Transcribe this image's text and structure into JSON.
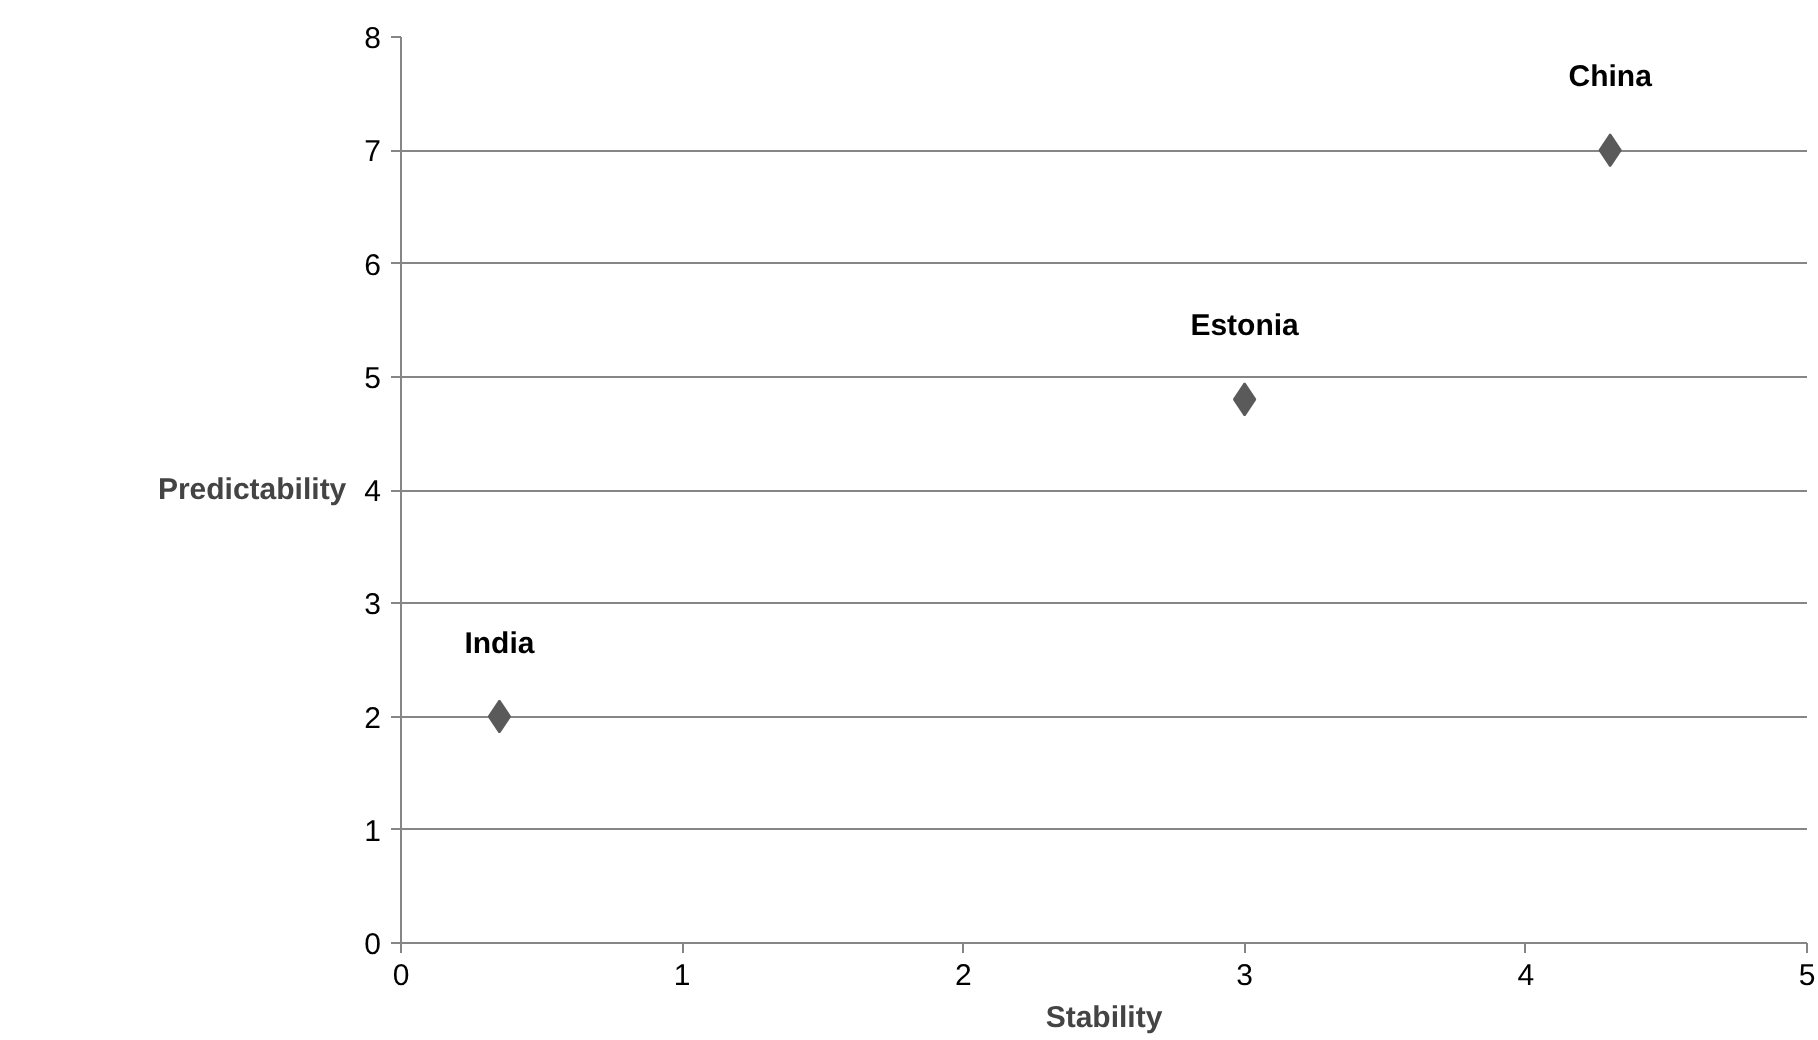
{
  "chart_data": {
    "type": "scatter",
    "xlabel": "Stability",
    "ylabel": "Predictability",
    "x": [
      0.35,
      3,
      4.3
    ],
    "series": [
      {
        "color": "#5a5a5a",
        "values": [
          2,
          4.8,
          7
        ]
      }
    ],
    "annotations": [
      {
        "text": "India",
        "x": 0.35,
        "y": 2
      },
      {
        "text": "Estonia",
        "x": 3,
        "y": 4.8
      },
      {
        "text": "China",
        "x": 4.3,
        "y": 7
      }
    ],
    "xlim": [
      0,
      5
    ],
    "ylim": [
      0,
      8
    ],
    "xticks": [
      0,
      1,
      2,
      3,
      4,
      5
    ],
    "yticks": [
      0,
      1,
      2,
      3,
      4,
      5,
      6,
      7,
      8
    ],
    "grid": "y",
    "marker": "diamond"
  }
}
